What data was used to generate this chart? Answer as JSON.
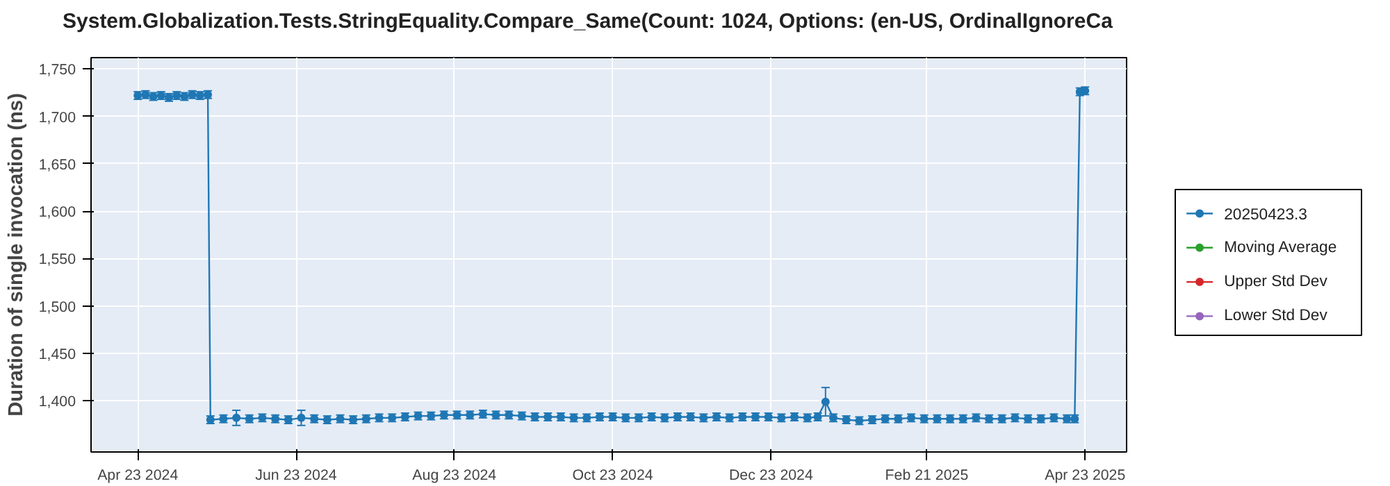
{
  "chart_data": {
    "type": "line",
    "title": "System.Globalization.Tests.StringEquality.Compare_Same(Count: 1024, Options: (en-US, OrdinalIgnoreCa",
    "ylabel": "Duration of single invocation (ns)",
    "x": [
      "2024-04-23",
      "2024-04-26",
      "2024-04-29",
      "2024-05-02",
      "2024-05-05",
      "2024-05-08",
      "2024-05-11",
      "2024-05-14",
      "2024-05-17",
      "2024-05-20",
      "2024-05-21",
      "2024-05-26",
      "2024-05-31",
      "2024-06-05",
      "2024-06-10",
      "2024-06-15",
      "2024-06-20",
      "2024-06-25",
      "2024-06-30",
      "2024-07-05",
      "2024-07-10",
      "2024-07-15",
      "2024-07-20",
      "2024-07-25",
      "2024-07-30",
      "2024-08-04",
      "2024-08-09",
      "2024-08-14",
      "2024-08-19",
      "2024-08-24",
      "2024-08-29",
      "2024-09-03",
      "2024-09-08",
      "2024-09-13",
      "2024-09-18",
      "2024-09-23",
      "2024-09-28",
      "2024-10-03",
      "2024-10-08",
      "2024-10-13",
      "2024-10-18",
      "2024-10-23",
      "2024-10-28",
      "2024-11-02",
      "2024-11-07",
      "2024-11-12",
      "2024-11-17",
      "2024-11-22",
      "2024-11-27",
      "2024-12-02",
      "2024-12-07",
      "2024-12-12",
      "2024-12-17",
      "2024-12-22",
      "2024-12-27",
      "2025-01-01",
      "2025-01-06",
      "2025-01-10",
      "2025-01-13",
      "2025-01-16",
      "2025-01-21",
      "2025-01-26",
      "2025-01-31",
      "2025-02-05",
      "2025-02-10",
      "2025-02-15",
      "2025-02-20",
      "2025-02-25",
      "2025-03-02",
      "2025-03-07",
      "2025-03-12",
      "2025-03-17",
      "2025-03-22",
      "2025-03-27",
      "2025-04-01",
      "2025-04-06",
      "2025-04-11",
      "2025-04-16",
      "2025-04-19",
      "2025-04-21",
      "2025-04-23"
    ],
    "series": [
      {
        "name": "20250423.3",
        "color": "#1f77b4",
        "values": [
          1722,
          1723,
          1721,
          1722,
          1720,
          1722,
          1721,
          1723,
          1722,
          1723,
          1380,
          1381,
          1382,
          1381,
          1382,
          1381,
          1380,
          1382,
          1381,
          1380,
          1381,
          1380,
          1381,
          1382,
          1382,
          1383,
          1384,
          1384,
          1385,
          1385,
          1385,
          1386,
          1385,
          1385,
          1384,
          1383,
          1383,
          1383,
          1382,
          1382,
          1383,
          1383,
          1382,
          1382,
          1383,
          1382,
          1383,
          1383,
          1382,
          1383,
          1382,
          1383,
          1383,
          1383,
          1382,
          1383,
          1382,
          1383,
          1399,
          1382,
          1380,
          1379,
          1380,
          1381,
          1381,
          1382,
          1381,
          1381,
          1381,
          1381,
          1382,
          1381,
          1381,
          1382,
          1381,
          1381,
          1382,
          1381,
          1381,
          1726,
          1727
        ],
        "errors": [
          4,
          4,
          4,
          4,
          4,
          4,
          4,
          4,
          4,
          4,
          4,
          4,
          8,
          4,
          4,
          4,
          4,
          8,
          4,
          4,
          4,
          4,
          4,
          4,
          4,
          4,
          4,
          4,
          4,
          4,
          4,
          4,
          4,
          4,
          4,
          4,
          4,
          4,
          4,
          4,
          4,
          4,
          4,
          4,
          4,
          4,
          4,
          4,
          4,
          4,
          4,
          4,
          4,
          4,
          4,
          4,
          4,
          4,
          15,
          4,
          4,
          4,
          4,
          4,
          4,
          4,
          4,
          4,
          4,
          4,
          4,
          4,
          4,
          4,
          4,
          4,
          4,
          4,
          4,
          4,
          4
        ]
      },
      {
        "name": "Moving Average",
        "color": "#2ca02c",
        "values": [
          null,
          null,
          null,
          null,
          null,
          null,
          null,
          null,
          null,
          null,
          null,
          null,
          null,
          null,
          null,
          null,
          null,
          null,
          null,
          null,
          null,
          null,
          null,
          null,
          null,
          null,
          null,
          null,
          null,
          null,
          null,
          null,
          null,
          null,
          null,
          null,
          null,
          null,
          null,
          null,
          null,
          null,
          null,
          null,
          null,
          null,
          null,
          null,
          null,
          null,
          null,
          null,
          null,
          null,
          null,
          null,
          null,
          null,
          null,
          null,
          null,
          null,
          null,
          null,
          null,
          null,
          null,
          null,
          null,
          null,
          null,
          null,
          null,
          null,
          null,
          null,
          null,
          null,
          null,
          null,
          null
        ]
      },
      {
        "name": "Upper Std Dev",
        "color": "#d62728",
        "values": [
          null,
          null,
          null,
          null,
          null,
          null,
          null,
          null,
          null,
          null,
          null,
          null,
          null,
          null,
          null,
          null,
          null,
          null,
          null,
          null,
          null,
          null,
          null,
          null,
          null,
          null,
          null,
          null,
          null,
          null,
          null,
          null,
          null,
          null,
          null,
          null,
          null,
          null,
          null,
          null,
          null,
          null,
          null,
          null,
          null,
          null,
          null,
          null,
          null,
          null,
          null,
          null,
          null,
          null,
          null,
          null,
          null,
          null,
          null,
          null,
          null,
          null,
          null,
          null,
          null,
          null,
          null,
          null,
          null,
          null,
          null,
          null,
          null,
          null,
          null,
          null,
          null,
          null,
          null,
          null,
          null
        ]
      },
      {
        "name": "Lower Std Dev",
        "color": "#9467bd",
        "values": [
          null,
          null,
          null,
          null,
          null,
          null,
          null,
          null,
          null,
          null,
          null,
          null,
          null,
          null,
          null,
          null,
          null,
          null,
          null,
          null,
          null,
          null,
          null,
          null,
          null,
          null,
          null,
          null,
          null,
          null,
          null,
          null,
          null,
          null,
          null,
          null,
          null,
          null,
          null,
          null,
          null,
          null,
          null,
          null,
          null,
          null,
          null,
          null,
          null,
          null,
          null,
          null,
          null,
          null,
          null,
          null,
          null,
          null,
          null,
          null,
          null,
          null,
          null,
          null,
          null,
          null,
          null,
          null,
          null,
          null,
          null,
          null,
          null,
          null,
          null,
          null,
          null,
          null,
          null,
          null,
          null
        ]
      }
    ],
    "xlim": [
      "2024-04-05",
      "2025-05-09"
    ],
    "xticks": [
      {
        "value": "2024-04-23",
        "label": "Apr 23 2024"
      },
      {
        "value": "2024-06-23",
        "label": "Jun 23 2024"
      },
      {
        "value": "2024-08-23",
        "label": "Aug 23 2024"
      },
      {
        "value": "2024-10-23",
        "label": "Oct 23 2024"
      },
      {
        "value": "2024-12-23",
        "label": "Dec 23 2024"
      },
      {
        "value": "2025-02-21",
        "label": "Feb 21 2025"
      },
      {
        "value": "2025-04-23",
        "label": "Apr 23 2025"
      }
    ],
    "ylim": [
      1346,
      1762
    ],
    "yticks": [
      {
        "value": 1400,
        "label": "1,400"
      },
      {
        "value": 1450,
        "label": "1,450"
      },
      {
        "value": 1500,
        "label": "1,500"
      },
      {
        "value": 1550,
        "label": "1,550"
      },
      {
        "value": 1600,
        "label": "1,600"
      },
      {
        "value": 1650,
        "label": "1,650"
      },
      {
        "value": 1700,
        "label": "1,700"
      },
      {
        "value": 1750,
        "label": "1,750"
      }
    ],
    "grid": true,
    "legend": "right",
    "marker": "circle",
    "line_style": "solid"
  }
}
